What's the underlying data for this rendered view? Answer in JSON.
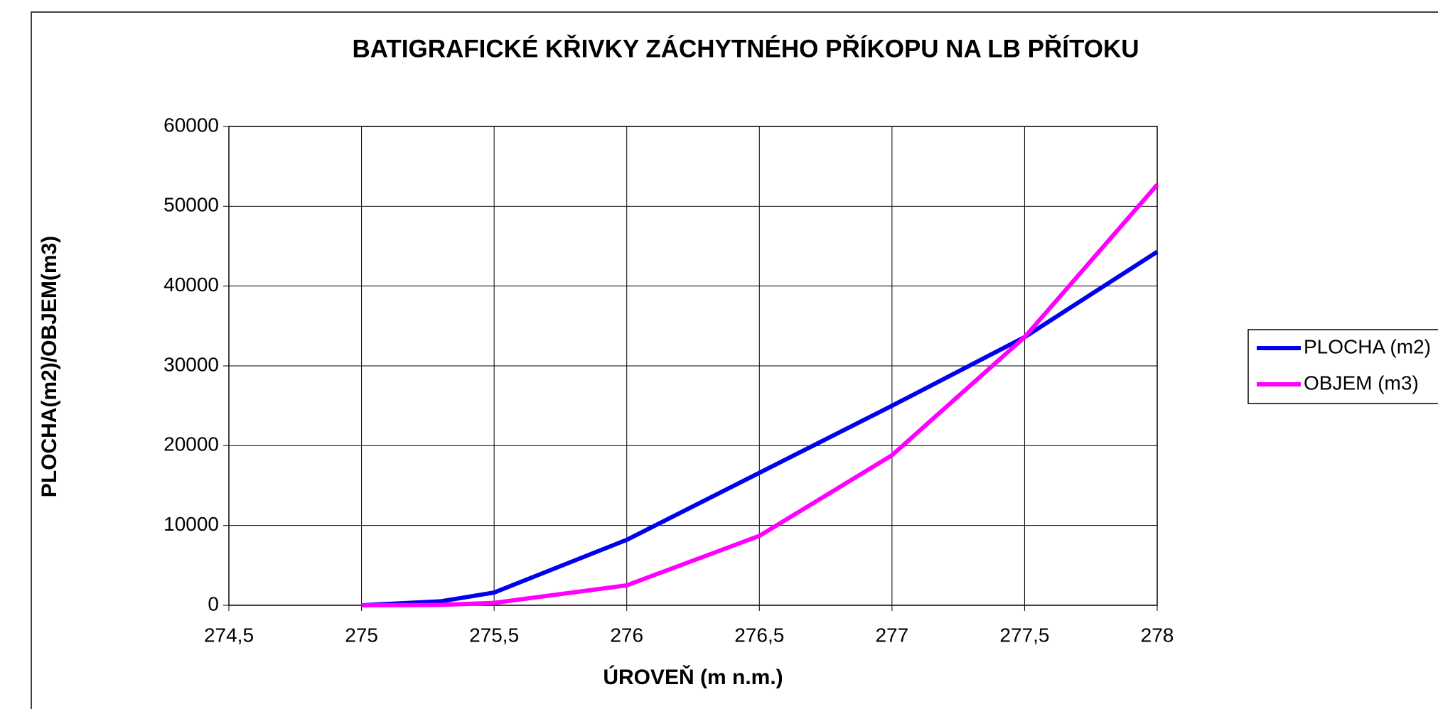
{
  "chart_data": {
    "type": "line",
    "title": "BATIGRAFICKÉ KŘIVKY ZÁCHYTNÉHO PŘÍKOPU NA LB PŘÍTOKU",
    "x_label": "ÚROVEŇ (m n.m.)",
    "y_label": "PLOCHA(m2)/OBJEM(m3)",
    "x": [
      275,
      275.3,
      275.5,
      276,
      276.5,
      277,
      277.5,
      278
    ],
    "series": [
      {
        "name": "PLOCHA (m2)",
        "color": "#0000ee",
        "values": [
          0,
          500,
          1600,
          8200,
          16600,
          25000,
          33600,
          44300
        ]
      },
      {
        "name": "OBJEM (m3)",
        "color": "#ff00ff",
        "values": [
          0,
          50,
          300,
          2500,
          8700,
          18800,
          33600,
          52700
        ]
      }
    ],
    "xlim": [
      274.5,
      278
    ],
    "xticks": [
      {
        "value": 274.5,
        "label": "274,5"
      },
      275,
      {
        "value": 275.5,
        "label": "275,5"
      },
      276,
      {
        "value": 276.5,
        "label": "276,5"
      },
      277,
      {
        "value": 277.5,
        "label": "277,5"
      },
      278
    ],
    "ylim": [
      0,
      60000
    ],
    "yticks": [
      0,
      10000,
      20000,
      30000,
      40000,
      50000,
      60000
    ],
    "grid": true,
    "legend": "right"
  }
}
